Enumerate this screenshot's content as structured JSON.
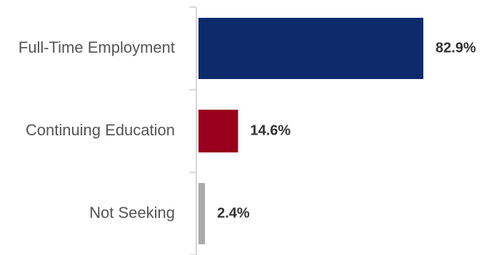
{
  "chart_data": {
    "type": "bar",
    "orientation": "horizontal",
    "categories": [
      "Full-Time Employment",
      "Continuing Education",
      "Not Seeking"
    ],
    "values": [
      82.9,
      14.6,
      2.4
    ],
    "value_labels": [
      "82.9%",
      "14.6%",
      "2.4%"
    ],
    "colors": [
      "#0d2a6b",
      "#98001c",
      "#aaaaaa"
    ],
    "xlim": [
      0,
      100
    ],
    "title": "",
    "xlabel": "",
    "ylabel": "",
    "grid": false,
    "legend": "none"
  }
}
